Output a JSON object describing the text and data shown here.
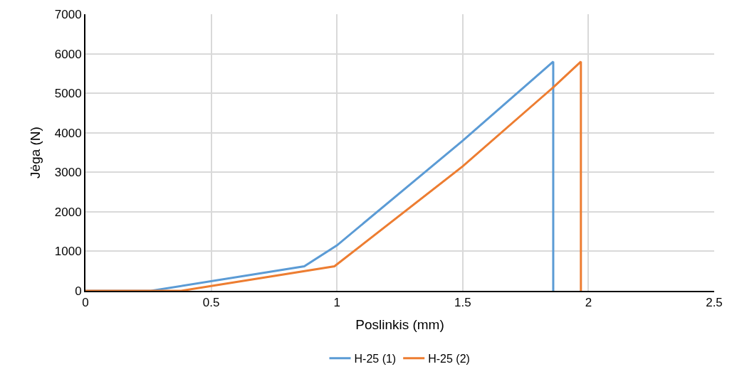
{
  "chart_data": {
    "type": "line",
    "xlabel": "Poslinkis (mm)",
    "ylabel": "Jėga (N)",
    "xlim": [
      0,
      2.5
    ],
    "xticks": [
      0,
      0.5,
      1,
      1.5,
      2,
      2.5
    ],
    "ylim": [
      0,
      7000
    ],
    "yticks": [
      0,
      1000,
      2000,
      3000,
      4000,
      5000,
      6000,
      7000
    ],
    "grid": true,
    "legend": "bottom",
    "marker": "none",
    "line_style": "solid",
    "series": [
      {
        "name": "H-25 (1)",
        "color": "#5b9bd5",
        "x": [
          0,
          0.26,
          0.87,
          1.0,
          1.5,
          1.86,
          1.86
        ],
        "values": [
          0,
          0,
          620,
          1150,
          3800,
          5800,
          0
        ]
      },
      {
        "name": "H-25 (2)",
        "color": "#ed7d31",
        "x": [
          0,
          0.38,
          0.99,
          1.5,
          1.86,
          1.97,
          1.97
        ],
        "values": [
          0,
          0,
          620,
          3150,
          5150,
          5800,
          0
        ]
      }
    ]
  }
}
